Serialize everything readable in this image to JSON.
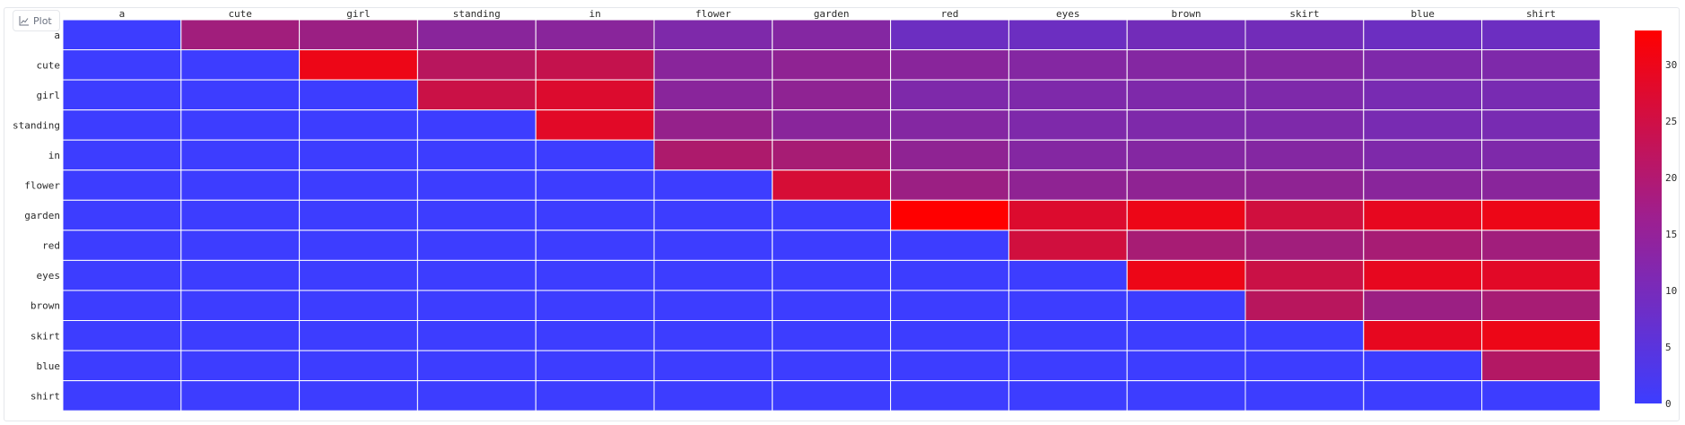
{
  "badge": {
    "label": "Plot",
    "icon": "chart-icon"
  },
  "chart_data": {
    "type": "heatmap",
    "x": [
      "a",
      "cute",
      "girl",
      "standing",
      "in",
      "flower",
      "garden",
      "red",
      "eyes",
      "brown",
      "skirt",
      "blue",
      "shirt"
    ],
    "y": [
      "a",
      "cute",
      "girl",
      "standing",
      "in",
      "flower",
      "garden",
      "red",
      "eyes",
      "brown",
      "skirt",
      "blue",
      "shirt"
    ],
    "z": [
      [
        0,
        17,
        16,
        13,
        13,
        11,
        12,
        8,
        8,
        9,
        9,
        8,
        8
      ],
      [
        0,
        0,
        30,
        21,
        23,
        13,
        14,
        13,
        12,
        12,
        12,
        11,
        11
      ],
      [
        0,
        0,
        0,
        24,
        27,
        13,
        14,
        11,
        11,
        11,
        11,
        10,
        10
      ],
      [
        0,
        0,
        0,
        0,
        28,
        15,
        13,
        12,
        11,
        11,
        11,
        10,
        10
      ],
      [
        0,
        0,
        0,
        0,
        0,
        19,
        18,
        14,
        12,
        12,
        12,
        11,
        11
      ],
      [
        0,
        0,
        0,
        0,
        0,
        0,
        26,
        16,
        14,
        14,
        14,
        13,
        13
      ],
      [
        0,
        0,
        0,
        0,
        0,
        0,
        0,
        33,
        27,
        30,
        25,
        29,
        30
      ],
      [
        0,
        0,
        0,
        0,
        0,
        0,
        0,
        0,
        25,
        18,
        17,
        18,
        17
      ],
      [
        0,
        0,
        0,
        0,
        0,
        0,
        0,
        0,
        0,
        30,
        24,
        29,
        28
      ],
      [
        0,
        0,
        0,
        0,
        0,
        0,
        0,
        0,
        0,
        0,
        21,
        16,
        18
      ],
      [
        0,
        0,
        0,
        0,
        0,
        0,
        0,
        0,
        0,
        0,
        0,
        29,
        30
      ],
      [
        0,
        0,
        0,
        0,
        0,
        0,
        0,
        0,
        0,
        0,
        0,
        0,
        20
      ],
      [
        0,
        0,
        0,
        0,
        0,
        0,
        0,
        0,
        0,
        0,
        0,
        0,
        0
      ]
    ],
    "zmin": 0,
    "zmax": 33,
    "colorscale": [
      "#3d3dff",
      "#ff0000"
    ],
    "colorbar_ticks": [
      0,
      5,
      10,
      15,
      20,
      25,
      30
    ],
    "grid": true
  }
}
